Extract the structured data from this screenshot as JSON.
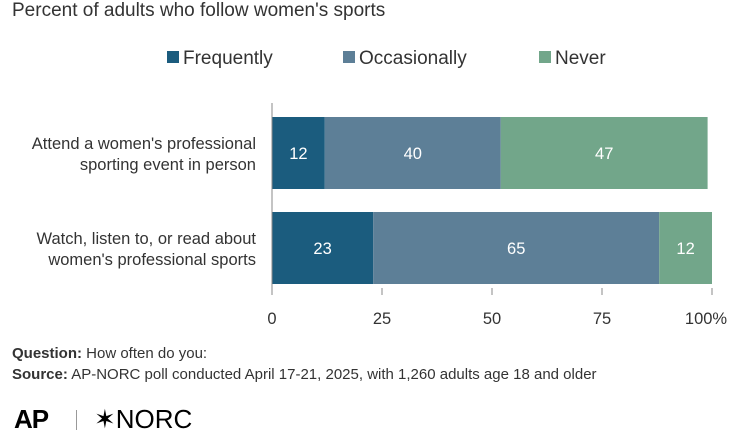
{
  "title": "Percent of adults who follow women's sports",
  "colors": {
    "frequently": "#1b5c7e",
    "occasionally": "#5d7f97",
    "never": "#72a68a",
    "axis": "#888888",
    "text": "#333333"
  },
  "chart_data": {
    "type": "bar",
    "orientation": "horizontal",
    "stacked": true,
    "title": "Percent of adults who follow women's sports",
    "categories": [
      "Attend a women's professional sporting event in person",
      "Watch, listen to, or read about women's professional sports"
    ],
    "category_lines": [
      [
        "Attend a women's professional",
        "sporting event in person"
      ],
      [
        "Watch, listen to, or read about",
        "women's professional sports"
      ]
    ],
    "series": [
      {
        "name": "Frequently",
        "values": [
          12,
          23
        ]
      },
      {
        "name": "Occasionally",
        "values": [
          40,
          65
        ]
      },
      {
        "name": "Never",
        "values": [
          47,
          12
        ]
      }
    ],
    "data_labels": [
      [
        "12",
        "40",
        "47"
      ],
      [
        "23",
        "65",
        "12"
      ]
    ],
    "xlim": [
      0,
      100
    ],
    "x_ticks": [
      "0",
      "25",
      "50",
      "75",
      "100%"
    ],
    "legend_position": "top",
    "grid": false
  },
  "footer": {
    "question_label": "Question:",
    "question_text": " How often do you:",
    "source_label": "Source:",
    "source_text": " AP-NORC poll conducted April 17-21, 2025, with 1,260 adults age 18 and older"
  },
  "logos": {
    "ap": "AP",
    "norc": "✶NORC"
  }
}
